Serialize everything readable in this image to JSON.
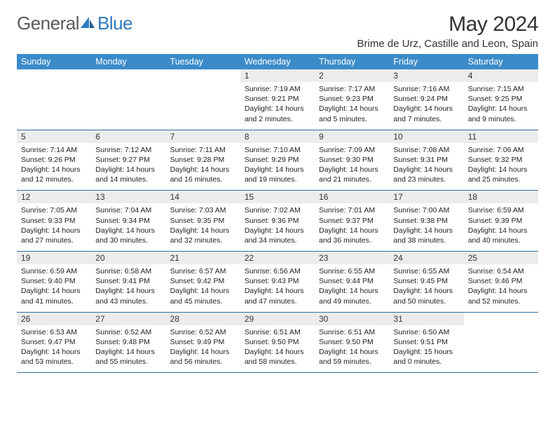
{
  "brand": {
    "part1": "General",
    "part2": "Blue"
  },
  "title": "May 2024",
  "location": "Brime de Urz, Castille and Leon, Spain",
  "colors": {
    "header_bg": "#3b8bc9",
    "header_text": "#ffffff",
    "daynum_bg": "#ececec",
    "row_border": "#2f6ea8",
    "brand_gray": "#5a5a5a",
    "brand_blue": "#2f7bbf"
  },
  "weekdays": [
    "Sunday",
    "Monday",
    "Tuesday",
    "Wednesday",
    "Thursday",
    "Friday",
    "Saturday"
  ],
  "weeks": [
    [
      null,
      null,
      null,
      {
        "n": "1",
        "sr": "7:19 AM",
        "ss": "9:21 PM",
        "dl": "14 hours and 2 minutes."
      },
      {
        "n": "2",
        "sr": "7:17 AM",
        "ss": "9:23 PM",
        "dl": "14 hours and 5 minutes."
      },
      {
        "n": "3",
        "sr": "7:16 AM",
        "ss": "9:24 PM",
        "dl": "14 hours and 7 minutes."
      },
      {
        "n": "4",
        "sr": "7:15 AM",
        "ss": "9:25 PM",
        "dl": "14 hours and 9 minutes."
      }
    ],
    [
      {
        "n": "5",
        "sr": "7:14 AM",
        "ss": "9:26 PM",
        "dl": "14 hours and 12 minutes."
      },
      {
        "n": "6",
        "sr": "7:12 AM",
        "ss": "9:27 PM",
        "dl": "14 hours and 14 minutes."
      },
      {
        "n": "7",
        "sr": "7:11 AM",
        "ss": "9:28 PM",
        "dl": "14 hours and 16 minutes."
      },
      {
        "n": "8",
        "sr": "7:10 AM",
        "ss": "9:29 PM",
        "dl": "14 hours and 19 minutes."
      },
      {
        "n": "9",
        "sr": "7:09 AM",
        "ss": "9:30 PM",
        "dl": "14 hours and 21 minutes."
      },
      {
        "n": "10",
        "sr": "7:08 AM",
        "ss": "9:31 PM",
        "dl": "14 hours and 23 minutes."
      },
      {
        "n": "11",
        "sr": "7:06 AM",
        "ss": "9:32 PM",
        "dl": "14 hours and 25 minutes."
      }
    ],
    [
      {
        "n": "12",
        "sr": "7:05 AM",
        "ss": "9:33 PM",
        "dl": "14 hours and 27 minutes."
      },
      {
        "n": "13",
        "sr": "7:04 AM",
        "ss": "9:34 PM",
        "dl": "14 hours and 30 minutes."
      },
      {
        "n": "14",
        "sr": "7:03 AM",
        "ss": "9:35 PM",
        "dl": "14 hours and 32 minutes."
      },
      {
        "n": "15",
        "sr": "7:02 AM",
        "ss": "9:36 PM",
        "dl": "14 hours and 34 minutes."
      },
      {
        "n": "16",
        "sr": "7:01 AM",
        "ss": "9:37 PM",
        "dl": "14 hours and 36 minutes."
      },
      {
        "n": "17",
        "sr": "7:00 AM",
        "ss": "9:38 PM",
        "dl": "14 hours and 38 minutes."
      },
      {
        "n": "18",
        "sr": "6:59 AM",
        "ss": "9:39 PM",
        "dl": "14 hours and 40 minutes."
      }
    ],
    [
      {
        "n": "19",
        "sr": "6:59 AM",
        "ss": "9:40 PM",
        "dl": "14 hours and 41 minutes."
      },
      {
        "n": "20",
        "sr": "6:58 AM",
        "ss": "9:41 PM",
        "dl": "14 hours and 43 minutes."
      },
      {
        "n": "21",
        "sr": "6:57 AM",
        "ss": "9:42 PM",
        "dl": "14 hours and 45 minutes."
      },
      {
        "n": "22",
        "sr": "6:56 AM",
        "ss": "9:43 PM",
        "dl": "14 hours and 47 minutes."
      },
      {
        "n": "23",
        "sr": "6:55 AM",
        "ss": "9:44 PM",
        "dl": "14 hours and 49 minutes."
      },
      {
        "n": "24",
        "sr": "6:55 AM",
        "ss": "9:45 PM",
        "dl": "14 hours and 50 minutes."
      },
      {
        "n": "25",
        "sr": "6:54 AM",
        "ss": "9:46 PM",
        "dl": "14 hours and 52 minutes."
      }
    ],
    [
      {
        "n": "26",
        "sr": "6:53 AM",
        "ss": "9:47 PM",
        "dl": "14 hours and 53 minutes."
      },
      {
        "n": "27",
        "sr": "6:52 AM",
        "ss": "9:48 PM",
        "dl": "14 hours and 55 minutes."
      },
      {
        "n": "28",
        "sr": "6:52 AM",
        "ss": "9:49 PM",
        "dl": "14 hours and 56 minutes."
      },
      {
        "n": "29",
        "sr": "6:51 AM",
        "ss": "9:50 PM",
        "dl": "14 hours and 58 minutes."
      },
      {
        "n": "30",
        "sr": "6:51 AM",
        "ss": "9:50 PM",
        "dl": "14 hours and 59 minutes."
      },
      {
        "n": "31",
        "sr": "6:50 AM",
        "ss": "9:51 PM",
        "dl": "15 hours and 0 minutes."
      },
      null
    ]
  ],
  "labels": {
    "sunrise": "Sunrise:",
    "sunset": "Sunset:",
    "daylight": "Daylight:"
  }
}
